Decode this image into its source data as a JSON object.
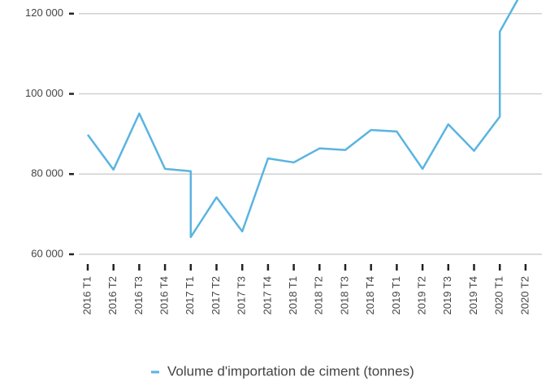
{
  "chart_data": {
    "type": "line",
    "x": [
      "2016 T1",
      "2016 T2",
      "2016 T3",
      "2016 T4",
      "2017 T1",
      "2017 T1",
      "2017 T2",
      "2017 T3",
      "2017 T4",
      "2018 T1",
      "2018 T2",
      "2018 T3",
      "2018 T4",
      "2019 T1",
      "2019 T2",
      "2019 T3",
      "2019 T4",
      "2020 T1",
      "2020 T1",
      "2020 T2"
    ],
    "xticks": [
      "2016 T1",
      "2016 T2",
      "2016 T3",
      "2016 T4",
      "2017 T1",
      "2017 T2",
      "2017 T3",
      "2017 T4",
      "2018 T1",
      "2018 T2",
      "2018 T3",
      "2018 T4",
      "2019 T1",
      "2019 T2",
      "2019 T3",
      "2019 T4",
      "2020 T1",
      "2020 T2"
    ],
    "series": [
      {
        "name": "Volume d'importation de ciment (tonnes)",
        "color": "#5ab4e0",
        "values": [
          89800,
          81100,
          95100,
          81300,
          80700,
          64300,
          74200,
          65700,
          83900,
          82900,
          86400,
          86000,
          91000,
          90600,
          81300,
          92400,
          85800,
          94300,
          115500,
          127000
        ]
      }
    ],
    "ylim": [
      60000,
      123400
    ],
    "yticks": [
      {
        "value": 60000,
        "label": "60 000"
      },
      {
        "value": 80000,
        "label": "80 000"
      },
      {
        "value": 100000,
        "label": "100 000"
      },
      {
        "value": 120000,
        "label": "120 000"
      }
    ],
    "grid": true,
    "legend": "bottom"
  }
}
